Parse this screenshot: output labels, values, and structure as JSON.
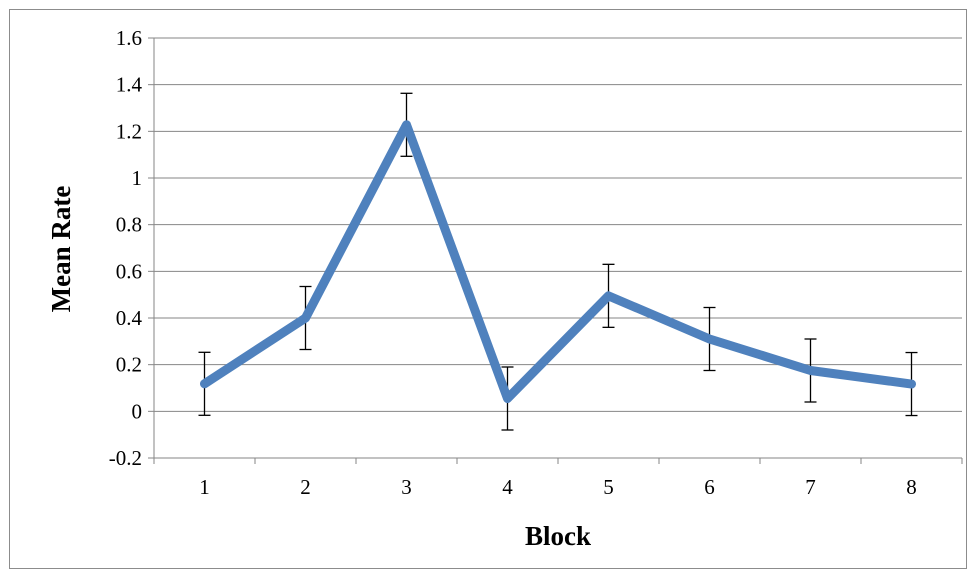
{
  "chart_data": {
    "type": "line",
    "xlabel": "Block",
    "ylabel": "Mean Rate",
    "categories": [
      "1",
      "2",
      "3",
      "4",
      "5",
      "6",
      "7",
      "8"
    ],
    "series": [
      {
        "values": [
          0.118,
          0.4,
          1.228,
          0.055,
          0.495,
          0.31,
          0.175,
          0.117
        ],
        "error": [
          0.135,
          0.135,
          0.135,
          0.135,
          0.135,
          0.135,
          0.135,
          0.135
        ],
        "color": "#4f81bd"
      }
    ],
    "ylim": [
      -0.2,
      1.6
    ],
    "yticks": [
      "-0.2",
      "0",
      "0.2",
      "0.4",
      "0.6",
      "0.8",
      "1",
      "1.2",
      "1.4",
      "1.6"
    ],
    "grid": "horizontal",
    "legend": "none"
  }
}
